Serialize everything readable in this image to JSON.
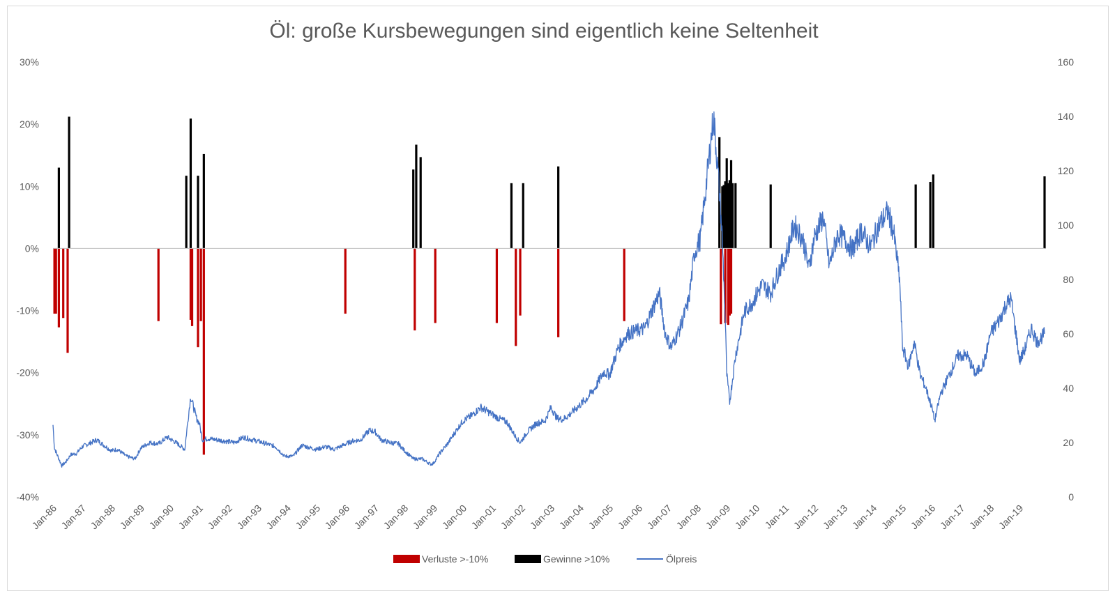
{
  "chart_data": {
    "type": "bar",
    "title": "Öl: große Kursbewegungen sind eigentlich keine Seltenheit",
    "left_axis": {
      "ylim": [
        -40,
        30
      ],
      "tick_labels": [
        "30%",
        "20%",
        "10%",
        "0%",
        "-10%",
        "-20%",
        "-30%",
        "-40%"
      ],
      "tick_values": [
        30,
        20,
        10,
        0,
        -10,
        -20,
        -30,
        -40
      ]
    },
    "right_axis": {
      "ylim": [
        0,
        160
      ],
      "tick_labels": [
        "160",
        "140",
        "120",
        "100",
        "80",
        "60",
        "40",
        "20",
        "0"
      ],
      "tick_values": [
        160,
        140,
        120,
        100,
        80,
        60,
        40,
        20,
        0
      ]
    },
    "x_axis": {
      "xlim": [
        1986.0,
        2019.85
      ],
      "tick_labels": [
        "Jan-86",
        "Jan-87",
        "Jan-88",
        "Jan-89",
        "Jan-90",
        "Jan-91",
        "Jan-92",
        "Jan-93",
        "Jan-94",
        "Jan-95",
        "Jan-96",
        "Jan-97",
        "Jan-98",
        "Jan-99",
        "Jan-00",
        "Jan-01",
        "Jan-02",
        "Jan-03",
        "Jan-04",
        "Jan-05",
        "Jan-06",
        "Jan-07",
        "Jan-08",
        "Jan-09",
        "Jan-10",
        "Jan-11",
        "Jan-12",
        "Jan-13",
        "Jan-14",
        "Jan-15",
        "Jan-16",
        "Jan-17",
        "Jan-18",
        "Jan-19"
      ],
      "tick_values": [
        1986,
        1987,
        1988,
        1989,
        1990,
        1991,
        1992,
        1993,
        1994,
        1995,
        1996,
        1997,
        1998,
        1999,
        2000,
        2001,
        2002,
        2003,
        2004,
        2005,
        2006,
        2007,
        2008,
        2009,
        2010,
        2011,
        2012,
        2013,
        2014,
        2015,
        2016,
        2017,
        2018,
        2019
      ]
    },
    "series": [
      {
        "name": "Verluste >-10%",
        "kind": "bar",
        "color": "#c00000",
        "x": [
          1986.05,
          1986.1,
          1986.2,
          1986.35,
          1986.5,
          1989.6,
          1990.7,
          1990.75,
          1990.95,
          1991.05,
          1991.15,
          1995.98,
          1998.35,
          1999.05,
          2001.15,
          2001.8,
          2001.95,
          2003.25,
          2005.5,
          2008.8,
          2008.95,
          2009.05,
          2009.1,
          2009.15
        ],
        "values": [
          -10.5,
          -10.5,
          -12.7,
          -11.2,
          -16.8,
          -11.7,
          -11.5,
          -12.5,
          -15.9,
          -11.7,
          -33.2,
          -10.5,
          -13.2,
          -12.0,
          -12.0,
          -15.7,
          -10.8,
          -14.3,
          -11.7,
          -12.2,
          -12.0,
          -12.3,
          -10.8,
          -10.5
        ]
      },
      {
        "name": "Gewinne >10%",
        "kind": "bar",
        "color": "#000000",
        "x": [
          1986.2,
          1986.55,
          1990.55,
          1990.7,
          1990.95,
          1991.15,
          1998.3,
          1998.4,
          1998.55,
          2001.65,
          2002.05,
          2003.25,
          2008.75,
          2008.85,
          2008.9,
          2008.95,
          2009.0,
          2009.05,
          2009.1,
          2009.15,
          2009.2,
          2009.3,
          2010.5,
          2015.45,
          2015.95,
          2016.05,
          2019.85
        ],
        "values": [
          13.0,
          21.2,
          11.7,
          20.9,
          11.7,
          15.2,
          12.7,
          16.7,
          14.7,
          10.5,
          10.5,
          13.2,
          17.9,
          10.0,
          10.2,
          10.8,
          14.5,
          10.5,
          11.0,
          14.2,
          10.5,
          10.5,
          10.3,
          10.3,
          10.7,
          11.9,
          11.6
        ]
      },
      {
        "name": "Ölpreis",
        "kind": "line",
        "color": "#4472c4",
        "axis": "right",
        "x": [
          1986.0,
          1986.05,
          1986.2,
          1986.3,
          1986.45,
          1986.6,
          1986.8,
          1987.0,
          1987.2,
          1987.5,
          1987.8,
          1988.0,
          1988.2,
          1988.5,
          1988.8,
          1989.0,
          1989.3,
          1989.6,
          1989.9,
          1990.2,
          1990.5,
          1990.6,
          1990.7,
          1990.8,
          1990.9,
          1991.0,
          1991.1,
          1991.3,
          1991.6,
          1991.9,
          1992.2,
          1992.5,
          1992.8,
          1993.0,
          1993.3,
          1993.6,
          1993.9,
          1994.2,
          1994.5,
          1994.8,
          1995.0,
          1995.3,
          1995.6,
          1995.9,
          1996.2,
          1996.5,
          1996.8,
          1997.0,
          1997.2,
          1997.5,
          1997.8,
          1998.0,
          1998.3,
          1998.6,
          1998.9,
          1999.0,
          1999.2,
          1999.5,
          1999.8,
          2000.0,
          2000.3,
          2000.6,
          2000.9,
          2001.2,
          2001.5,
          2001.8,
          2001.95,
          2002.2,
          2002.5,
          2002.8,
          2003.0,
          2003.2,
          2003.4,
          2003.6,
          2003.9,
          2004.2,
          2004.5,
          2004.8,
          2005.0,
          2005.3,
          2005.6,
          2005.9,
          2006.2,
          2006.5,
          2006.7,
          2006.9,
          2007.1,
          2007.4,
          2007.7,
          2007.9,
          2008.1,
          2008.3,
          2008.45,
          2008.55,
          2008.7,
          2008.85,
          2008.95,
          2009.0,
          2009.1,
          2009.3,
          2009.6,
          2009.9,
          2010.2,
          2010.5,
          2010.8,
          2011.0,
          2011.3,
          2011.6,
          2011.8,
          2012.0,
          2012.3,
          2012.5,
          2012.8,
          2013.0,
          2013.3,
          2013.6,
          2013.9,
          2014.2,
          2014.5,
          2014.7,
          2014.9,
          2015.0,
          2015.2,
          2015.4,
          2015.6,
          2015.8,
          2016.0,
          2016.1,
          2016.3,
          2016.6,
          2016.9,
          2017.2,
          2017.5,
          2017.8,
          2018.0,
          2018.3,
          2018.5,
          2018.7,
          2018.9,
          2019.0,
          2019.2,
          2019.4,
          2019.6,
          2019.85
        ],
        "values": [
          26.5,
          18.0,
          14.0,
          11.5,
          13.0,
          15.5,
          16.0,
          18.5,
          19.5,
          21.0,
          18.5,
          17.0,
          17.5,
          15.0,
          14.0,
          18.0,
          20.0,
          19.5,
          22.0,
          20.0,
          17.5,
          27.5,
          37.0,
          33.0,
          29.0,
          27.0,
          21.0,
          21.5,
          21.0,
          20.5,
          20.0,
          22.0,
          21.0,
          20.5,
          19.5,
          18.5,
          15.0,
          15.0,
          19.0,
          18.0,
          17.5,
          18.5,
          17.5,
          19.0,
          20.5,
          21.0,
          24.5,
          24.0,
          21.0,
          20.0,
          19.5,
          17.0,
          14.0,
          14.0,
          12.0,
          12.5,
          16.0,
          20.0,
          25.0,
          28.0,
          30.0,
          33.0,
          31.0,
          29.0,
          27.5,
          22.0,
          20.0,
          24.0,
          27.0,
          28.0,
          33.0,
          29.0,
          28.5,
          30.0,
          33.0,
          36.0,
          40.0,
          46.0,
          45.0,
          55.0,
          60.0,
          61.0,
          62.0,
          70.0,
          75.0,
          60.0,
          55.0,
          62.0,
          72.0,
          90.0,
          95.0,
          115.0,
          130.0,
          140.0,
          120.0,
          95.0,
          65.0,
          45.0,
          35.0,
          52.0,
          68.0,
          72.0,
          78.0,
          75.0,
          84.0,
          88.0,
          100.0,
          95.0,
          84.0,
          96.0,
          103.0,
          85.0,
          97.0,
          95.0,
          91.0,
          98.0,
          92.0,
          100.0,
          105.0,
          97.0,
          80.0,
          55.0,
          48.0,
          57.0,
          45.0,
          40.0,
          33.0,
          28.0,
          38.0,
          45.0,
          52.0,
          52.0,
          45.0,
          50.0,
          60.0,
          65.0,
          70.0,
          73.0,
          58.0,
          50.0,
          55.0,
          62.0,
          57.0,
          60.0
        ]
      }
    ],
    "legend": {
      "placement": "bottom",
      "entries": [
        "Verluste >-10%",
        "Gewinne >10%",
        "Ölpreis"
      ]
    },
    "grid": false
  }
}
